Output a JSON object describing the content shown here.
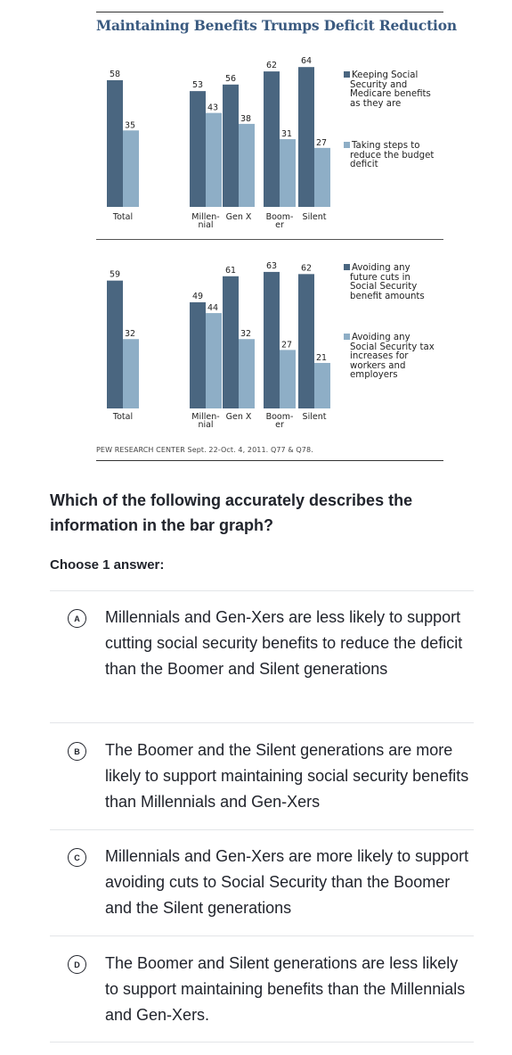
{
  "figure": {
    "title": "Maintaining Benefits Trumps Deficit Reduction",
    "source": "PEW RESEARCH CENTER Sept. 22-Oct. 4, 2011. Q77 & Q78.",
    "colors": {
      "dark": "#4a6680",
      "light": "#8eaec6"
    }
  },
  "chart_data": [
    {
      "type": "bar",
      "categories": [
        "Total",
        "Millennial",
        "Gen X",
        "Boomer",
        "Silent"
      ],
      "category_labels": [
        {
          "line1": "Total",
          "line2": ""
        },
        {
          "line1": "Millen-",
          "line2": "nial"
        },
        {
          "line1": "Gen X",
          "line2": ""
        },
        {
          "line1": "Boom-",
          "line2": "er"
        },
        {
          "line1": "Silent",
          "line2": ""
        }
      ],
      "series": [
        {
          "name": "Keeping Social Security and Medicare benefits as they are",
          "values": [
            58,
            53,
            56,
            62,
            64
          ],
          "color": "#4a6680"
        },
        {
          "name": "Taking steps to reduce the budget deficit",
          "values": [
            35,
            43,
            38,
            31,
            27
          ],
          "color": "#8eaec6"
        }
      ],
      "ylim": [
        0,
        70
      ]
    },
    {
      "type": "bar",
      "categories": [
        "Total",
        "Millennial",
        "Gen X",
        "Boomer",
        "Silent"
      ],
      "category_labels": [
        {
          "line1": "Total",
          "line2": ""
        },
        {
          "line1": "Millen-",
          "line2": "nial"
        },
        {
          "line1": "Gen X",
          "line2": ""
        },
        {
          "line1": "Boom-",
          "line2": "er"
        },
        {
          "line1": "Silent",
          "line2": ""
        }
      ],
      "series": [
        {
          "name": "Avoiding any future cuts in Social Security benefit amounts",
          "values": [
            59,
            49,
            61,
            63,
            62
          ],
          "color": "#4a6680"
        },
        {
          "name": "Avoiding any Social Security tax increases for workers and employers",
          "values": [
            32,
            44,
            32,
            27,
            21
          ],
          "color": "#8eaec6"
        }
      ],
      "ylim": [
        0,
        70
      ]
    }
  ],
  "legends": [
    {
      "lines": [
        [
          "Keeping Social",
          "Security and",
          "Medicare benefits",
          "as they are"
        ],
        [
          "Taking steps to",
          "reduce the budget",
          "deficit"
        ]
      ]
    },
    {
      "lines": [
        [
          "Avoiding any",
          "future cuts in",
          "Social Security",
          "benefit amounts"
        ],
        [
          "Avoiding any",
          "Social Security tax",
          "increases for",
          "workers and",
          "employers"
        ]
      ]
    }
  ],
  "question": "Which of the following accurately describes the information in the bar graph?",
  "choose_label": "Choose 1 answer:",
  "options": [
    {
      "letter": "A",
      "text": "Millennials and Gen-Xers are less likely to support cutting social security benefits to reduce the deficit than the Boomer and Silent generations"
    },
    {
      "letter": "B",
      "text": "The Boomer and the Silent generations are more likely to support maintaining social security benefits than Millennials and Gen-Xers"
    },
    {
      "letter": "C",
      "text": "Millennials and Gen-Xers are more likely to support avoiding cuts to Social Security than the Boomer and the Silent generations"
    },
    {
      "letter": "D",
      "text": "The Boomer and Silent generations are less likely to support maintaining benefits than the Millennials and Gen-Xers."
    }
  ]
}
